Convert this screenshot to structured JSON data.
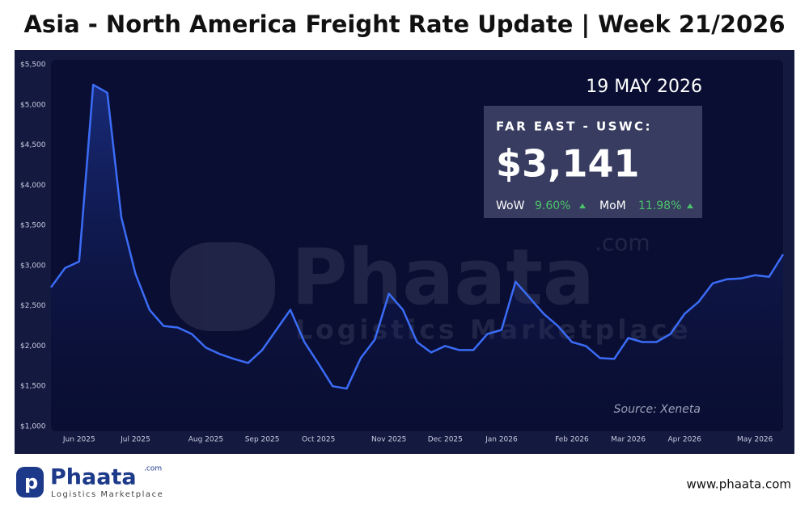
{
  "chart_data": {
    "type": "line",
    "title": "Asia - North America Freight Rate Update | Week 21/2026",
    "categories": [
      null,
      null,
      "Jun 2025",
      null,
      null,
      null,
      "Jul 2025",
      null,
      null,
      null,
      null,
      "Aug 2025",
      null,
      null,
      null,
      "Sep 2025",
      null,
      null,
      null,
      "Oct 2025",
      null,
      null,
      null,
      null,
      "Nov 2025",
      null,
      null,
      null,
      "Dec 2025",
      null,
      null,
      null,
      "Jan 2026",
      null,
      null,
      null,
      null,
      "Feb 2026",
      null,
      null,
      null,
      "Mar 2026",
      null,
      null,
      null,
      "Apr 2026",
      null,
      null,
      null,
      null,
      "May 2026",
      null,
      null
    ],
    "series": [
      {
        "name": "Far East - USWC",
        "color": "#3b6cf6",
        "values": [
          2730,
          2970,
          3050,
          5250,
          5150,
          3600,
          2900,
          2450,
          2250,
          2230,
          2150,
          1980,
          1900,
          1840,
          1790,
          1950,
          2200,
          2450,
          2050,
          1780,
          1500,
          1470,
          1850,
          2080,
          2650,
          2450,
          2050,
          1920,
          2000,
          1950,
          1950,
          2150,
          2200,
          2800,
          2600,
          2400,
          2250,
          2050,
          2000,
          1850,
          1840,
          2100,
          2050,
          2050,
          2150,
          2400,
          2550,
          2780,
          2830,
          2840,
          2880,
          2860,
          3141
        ]
      }
    ],
    "ylim": [
      1000,
      5500
    ],
    "yticks": [
      {
        "value": 1000,
        "label": "$1,000"
      },
      {
        "value": 1500,
        "label": "$1,500"
      },
      {
        "value": 2000,
        "label": "$2,000"
      },
      {
        "value": 2500,
        "label": "$2,500"
      },
      {
        "value": 3000,
        "label": "$3,000"
      },
      {
        "value": 3500,
        "label": "$3,500"
      },
      {
        "value": 4000,
        "label": "$4,000"
      },
      {
        "value": 4500,
        "label": "$4,500"
      },
      {
        "value": 5000,
        "label": "$5,000"
      },
      {
        "value": 5500,
        "label": "$5,500"
      }
    ],
    "grid": false,
    "date": "19 MAY 2026",
    "callout": {
      "route": "FAR EAST - USWC:",
      "value": "$3,141",
      "wow_label": "WoW",
      "wow": "9.60%",
      "mom_label": "MoM",
      "mom": "11.98%"
    },
    "source": "Source: Xeneta"
  },
  "watermark": {
    "name": "Phaata",
    "suffix": ".com",
    "tagline": "Logistics Marketplace"
  },
  "footer": {
    "logo": "Phaata",
    "logo_suffix": ".com",
    "tagline": "Logistics Marketplace",
    "url": "www.phaata.com"
  }
}
